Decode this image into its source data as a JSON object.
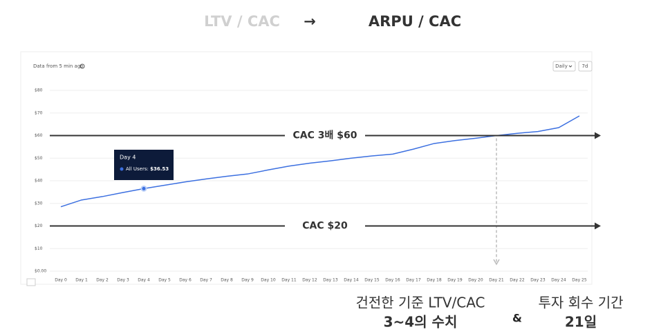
{
  "header": {
    "left": "LTV / CAC",
    "arrow": "→",
    "right": "ARPU / CAC"
  },
  "chart_data": {
    "type": "line",
    "subtitle": "Data from 5 min ago",
    "controls": [
      "Daily",
      "7d"
    ],
    "categories": [
      "Day 0",
      "Day 1",
      "Day 2",
      "Day 3",
      "Day 4",
      "Day 5",
      "Day 6",
      "Day 7",
      "Day 8",
      "Day 9",
      "Day 10",
      "Day 11",
      "Day 12",
      "Day 13",
      "Day 14",
      "Day 15",
      "Day 16",
      "Day 17",
      "Day 18",
      "Day 19",
      "Day 20",
      "Day 21",
      "Day 22",
      "Day 23",
      "Day 24",
      "Day 25"
    ],
    "series": [
      {
        "name": "All Users",
        "color": "#3b6fe0",
        "values": [
          28.5,
          31.5,
          33.0,
          34.8,
          36.53,
          38.0,
          39.5,
          40.8,
          42.0,
          43.0,
          44.8,
          46.5,
          47.8,
          48.8,
          50.0,
          51.0,
          51.8,
          54.0,
          56.5,
          57.8,
          58.8,
          60.0,
          61.0,
          61.8,
          63.5,
          68.7
        ]
      }
    ],
    "ylim": [
      0,
      80
    ],
    "yticks": [
      {
        "value": 0,
        "label": "$0.00"
      },
      {
        "value": 10,
        "label": "$10"
      },
      {
        "value": 20,
        "label": "$20"
      },
      {
        "value": 30,
        "label": "$30"
      },
      {
        "value": 40,
        "label": "$40"
      },
      {
        "value": 50,
        "label": "$50"
      },
      {
        "value": 60,
        "label": "$60"
      },
      {
        "value": 70,
        "label": "$70"
      },
      {
        "value": 80,
        "label": "$80"
      }
    ],
    "grid": true,
    "tooltip": {
      "title": "Day 4",
      "series": "All Users:",
      "value": 36.53,
      "value_label": "$36.53"
    },
    "reference_lines": [
      {
        "label": "CAC 3배 $60",
        "value": 60
      },
      {
        "label": "CAC $20",
        "value": 20
      }
    ]
  },
  "footer": {
    "left_line1": "건전한 기준 LTV/CAC",
    "left_line2": "3~4의 수치",
    "and": "&",
    "right_line1": "투자 회수 기간",
    "right_line2": "21일"
  }
}
